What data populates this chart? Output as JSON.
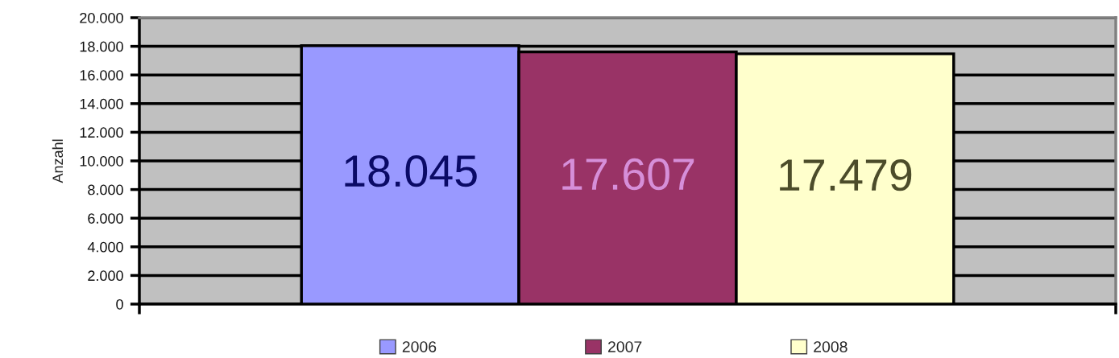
{
  "chart_data": {
    "type": "bar",
    "ylabel": "Anzahl",
    "categories": [
      null
    ],
    "series": [
      {
        "name": "2006",
        "color": "#9999ff",
        "values": [
          18045
        ],
        "value_labels": [
          "18.045"
        ]
      },
      {
        "name": "2007",
        "color": "#993366",
        "values": [
          17607
        ],
        "value_labels": [
          "17.607"
        ]
      },
      {
        "name": "2008",
        "color": "#ffffcc",
        "values": [
          17479
        ],
        "value_labels": [
          "17.479"
        ]
      }
    ],
    "ylim": [
      0,
      20000
    ],
    "yticks": [
      0,
      {
        "value": 2000,
        "label": "2.000"
      },
      {
        "value": 4000,
        "label": "4.000"
      },
      {
        "value": 6000,
        "label": "6.000"
      },
      {
        "value": 8000,
        "label": "8.000"
      },
      {
        "value": 10000,
        "label": "10.000"
      },
      {
        "value": 12000,
        "label": "12.000"
      },
      {
        "value": 14000,
        "label": "14.000"
      },
      {
        "value": 16000,
        "label": "16.000"
      },
      {
        "value": 18000,
        "label": "18.000"
      },
      {
        "value": 20000,
        "label": "20.000"
      }
    ],
    "grid": "y",
    "legend": "bottom"
  }
}
